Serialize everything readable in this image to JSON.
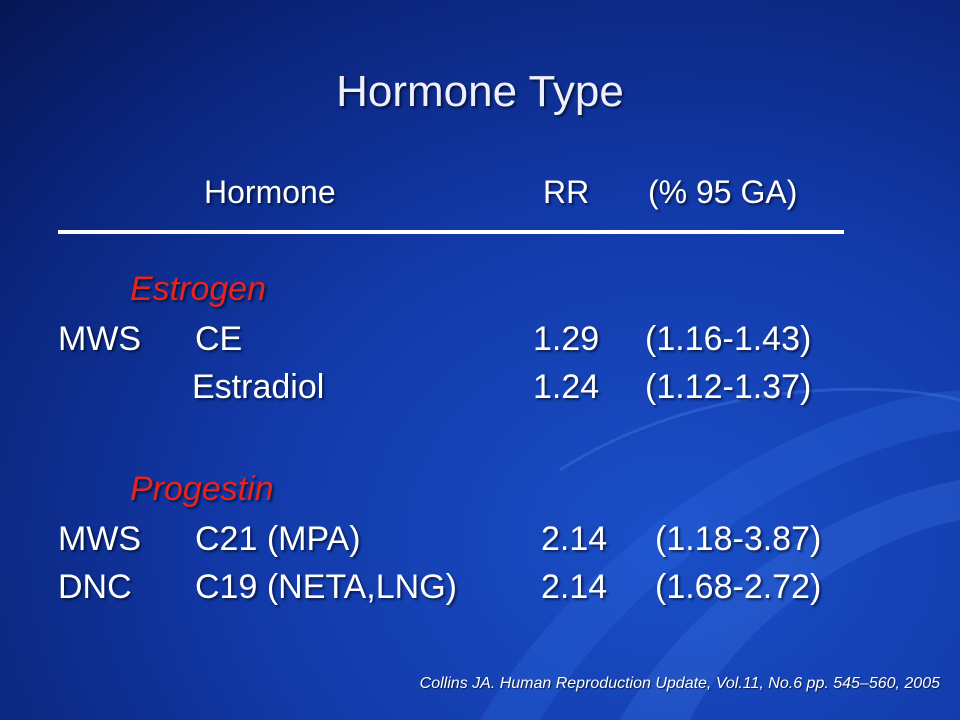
{
  "title": "Hormone Type",
  "header": {
    "hormone": "Hormone",
    "rr": "RR",
    "ci": "(% 95 GA)"
  },
  "groups": [
    {
      "label": "Estrogen",
      "rows": [
        {
          "study": "MWS",
          "hormone": "CE",
          "rr": "1.29",
          "ci": "(1.16-1.43)"
        },
        {
          "hormone": "Estradiol",
          "rr": "1.24",
          "ci": "(1.12-1.37)"
        }
      ]
    },
    {
      "label": "Progestin",
      "rows": [
        {
          "study": "MWS",
          "hormone": "C21 (MPA)",
          "rr": "2.14",
          "ci": "(1.18-3.87)"
        },
        {
          "study": "DNC",
          "hormone": "C19 (NETA,LNG)",
          "rr": "2.14",
          "ci": "(1.68-2.72)"
        }
      ]
    }
  ],
  "citation": "Collins JA. Human Reproduction Update, Vol.11, No.6 pp. 545–560, 2005"
}
